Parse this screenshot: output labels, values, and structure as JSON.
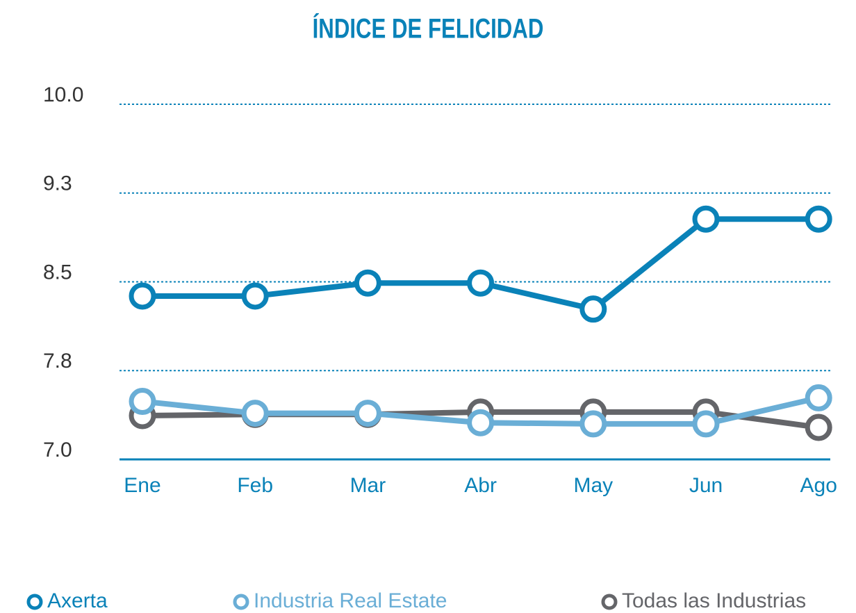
{
  "chart_data": {
    "type": "line",
    "title": "ÍNDICE DE FELICIDAD",
    "categories": [
      "Ene",
      "Feb",
      "Mar",
      "Abr",
      "May",
      "Jun",
      "Ago"
    ],
    "series": [
      {
        "name": "Axerta",
        "color": "#0a82b8",
        "values": [
          8.38,
          8.38,
          8.49,
          8.49,
          8.27,
          9.03,
          9.03
        ]
      },
      {
        "name": "Industria Real Estate",
        "color": "#6aaed6",
        "values": [
          7.49,
          7.39,
          7.39,
          7.31,
          7.3,
          7.3,
          7.52
        ]
      },
      {
        "name": "Todas las Industrias",
        "color": "#646569",
        "values": [
          7.37,
          7.38,
          7.38,
          7.4,
          7.4,
          7.4,
          7.27
        ]
      }
    ],
    "ylim": [
      7,
      10
    ],
    "yticks": [
      {
        "value": 10,
        "label": "10.0"
      },
      {
        "value": 9.25,
        "label": "9.3"
      },
      {
        "value": 8.5,
        "label": "8.5"
      },
      {
        "value": 7.75,
        "label": "7.8"
      },
      {
        "value": 7,
        "label": "7.0"
      }
    ],
    "grid": true,
    "legend": "bottom"
  }
}
